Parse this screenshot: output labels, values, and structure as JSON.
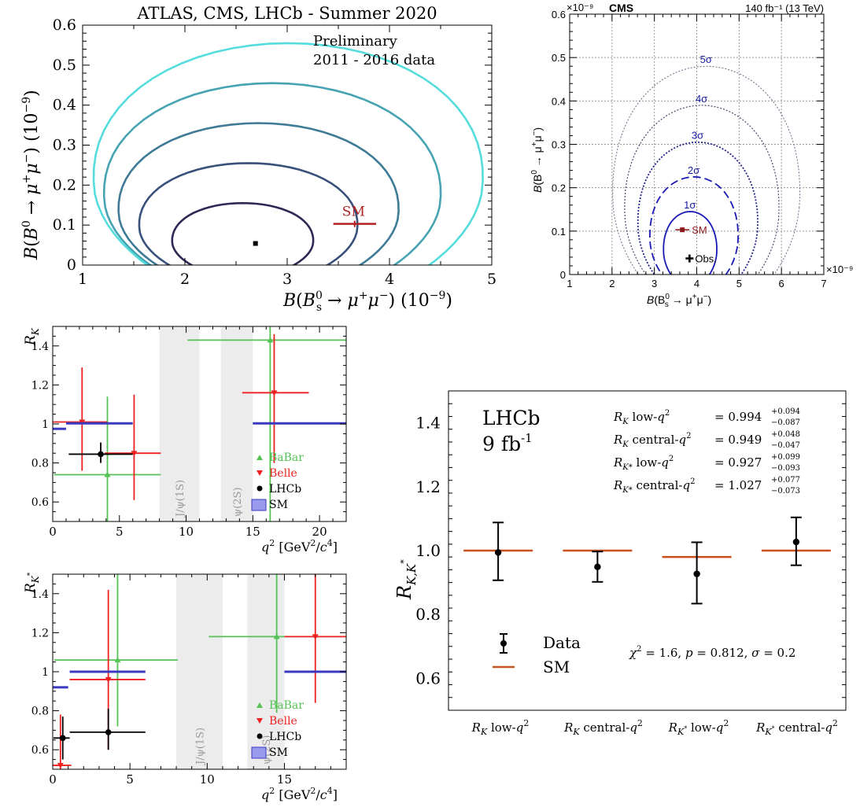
{
  "chart_data": [
    {
      "type": "contour",
      "title": "ATLAS, CMS, LHCb - Summer 2020",
      "annotations": [
        "Preliminary",
        "2011 - 2016 data"
      ],
      "xlabel": "B(B_s^0 → μ+μ−) (10^-9)",
      "ylabel": "B(B^0 → μ+μ−) (10^-9)",
      "xlim": [
        1,
        5
      ],
      "ylim": [
        0,
        0.6
      ],
      "xticks": [
        "1",
        "2",
        "3",
        "4",
        "5"
      ],
      "yticks": [
        "0",
        "0.1",
        "0.2",
        "0.3",
        "0.4",
        "0.5",
        "0.6"
      ],
      "best_fit": {
        "x": 2.69,
        "y": 0.054
      },
      "sm": {
        "label": "SM",
        "x": 3.66,
        "y": 0.103,
        "xerr": 0.14
      },
      "contours": [
        {
          "x_right": 3.25,
          "y_top": 0.155,
          "x_left": 1.88,
          "color": "#2c2a55"
        },
        {
          "x_right": 3.68,
          "y_top": 0.255,
          "x_left": 1.56,
          "color": "#38507a"
        },
        {
          "x_right": 4.08,
          "y_top": 0.355,
          "x_left": 1.36,
          "color": "#3f7a96"
        },
        {
          "x_right": 4.49,
          "y_top": 0.455,
          "x_left": 1.22,
          "color": "#46a4b2"
        },
        {
          "x_right": 4.9,
          "y_top": 0.555,
          "x_left": 1.12,
          "color": "#55dcdc"
        }
      ]
    },
    {
      "type": "contour",
      "title": "CMS",
      "lumi": "140 fb⁻¹ (13 TeV)",
      "x_exponent": "×10⁻⁹",
      "y_exponent": "×10⁻⁹",
      "xlabel": "B(B_s^0 → μ+μ−)",
      "ylabel": "B(B^0 → μ+μ−)",
      "xlim": [
        1,
        7
      ],
      "ylim": [
        0,
        0.6
      ],
      "xticks": [
        "1",
        "2",
        "3",
        "4",
        "5",
        "6",
        "7"
      ],
      "yticks": [
        "0",
        "0.1",
        "0.2",
        "0.3",
        "0.4",
        "0.5",
        "0.6"
      ],
      "obs": {
        "label": "Obs.",
        "x": 3.83,
        "y": 0.037
      },
      "sm": {
        "label": "SM",
        "x": 3.66,
        "y": 0.103
      },
      "contours": [
        {
          "label": "1σ",
          "x_left": 3.22,
          "x_right": 4.47,
          "y_top": 0.145
        },
        {
          "label": "2σ",
          "x_left": 2.9,
          "x_right": 4.97,
          "y_top": 0.225
        },
        {
          "label": "3σ",
          "x_left": 2.62,
          "x_right": 5.43,
          "y_top": 0.305
        },
        {
          "label": "4σ",
          "x_left": 2.31,
          "x_right": 5.93,
          "y_top": 0.39
        },
        {
          "label": "5σ",
          "x_left": 2.03,
          "x_right": 6.42,
          "y_top": 0.48
        }
      ]
    },
    {
      "type": "errorbar",
      "ylabel": "R_K",
      "xlabel": "q² [GeV²/c⁴]",
      "xlim": [
        0,
        22
      ],
      "ylim": [
        0.5,
        1.5
      ],
      "xticks": [
        "0",
        "5",
        "10",
        "15",
        "20"
      ],
      "yticks": [
        "0.6",
        "0.8",
        "1",
        "1.2",
        "1.4"
      ],
      "bands": [
        {
          "label": "J/ψ(1S)",
          "x": [
            8,
            11
          ]
        },
        {
          "label": "ψ(2S)",
          "x": [
            12.6,
            15
          ]
        }
      ],
      "legend": [
        "BaBar",
        "Belle",
        "LHCb",
        "SM"
      ],
      "series": [
        {
          "name": "BaBar",
          "color": "#55c255",
          "marker": "triangle-up",
          "points": [
            {
              "x": 4.1,
              "xlo": 0.1,
              "xhi": 8.1,
              "y": 0.74,
              "ylo": 0.5,
              "yhi": 1.14
            },
            {
              "x": 16.3,
              "xlo": 10.1,
              "xhi": 22,
              "y": 1.43,
              "ylo": 0.5,
              "yhi": 1.5
            }
          ]
        },
        {
          "name": "Belle",
          "color": "#ee2020",
          "marker": "triangle-down",
          "points": [
            {
              "x": 2.2,
              "xlo": 0,
              "xhi": 4.1,
              "y": 1.01,
              "ylo": 0.76,
              "yhi": 1.29
            },
            {
              "x": 6.1,
              "xlo": 3.9,
              "xhi": 8.1,
              "y": 0.85,
              "ylo": 0.61,
              "yhi": 1.15
            },
            {
              "x": 16.6,
              "xlo": 14.2,
              "xhi": 19.2,
              "y": 1.16,
              "ylo": 0.8,
              "yhi": 1.46
            }
          ]
        },
        {
          "name": "LHCb",
          "color": "#000000",
          "marker": "circle",
          "points": [
            {
              "x": 3.6,
              "xlo": 1.2,
              "xhi": 6.0,
              "y": 0.845,
              "ylo": 0.8,
              "yhi": 0.905
            }
          ]
        },
        {
          "name": "SM",
          "color": "#3a3ac0",
          "marker": "band",
          "points": [
            {
              "xlo": 0,
              "xhi": 1,
              "y": 0.975
            },
            {
              "xlo": 1,
              "xhi": 6,
              "y": 1.003
            },
            {
              "xlo": 15,
              "xhi": 22,
              "y": 1.003
            }
          ]
        }
      ]
    },
    {
      "type": "errorbar",
      "ylabel": "R_K*",
      "xlabel": "q² [GeV²/c⁴]",
      "xlim": [
        0,
        19
      ],
      "ylim": [
        0.5,
        1.5
      ],
      "xticks": [
        "0",
        "5",
        "10",
        "15"
      ],
      "yticks": [
        "0.6",
        "0.8",
        "1",
        "1.2",
        "1.4"
      ],
      "bands": [
        {
          "label": "J/ψ(1S)",
          "x": [
            8,
            11
          ]
        },
        {
          "label": "ψ(2S)",
          "x": [
            12.6,
            15
          ]
        }
      ],
      "legend": [
        "BaBar",
        "Belle",
        "LHCb",
        "SM"
      ],
      "series": [
        {
          "name": "BaBar",
          "color": "#55c255",
          "marker": "triangle-up",
          "points": [
            {
              "x": 4.2,
              "xlo": 0.1,
              "xhi": 8.1,
              "y": 1.06,
              "ylo": 0.72,
              "yhi": 1.5
            },
            {
              "x": 14.5,
              "xlo": 10.1,
              "xhi": 19,
              "y": 1.18,
              "ylo": 0.79,
              "yhi": 1.5
            }
          ]
        },
        {
          "name": "Belle",
          "color": "#ee2020",
          "marker": "triangle-down",
          "points": [
            {
              "x": 0.5,
              "xlo": 0,
              "xhi": 1.2,
              "y": 0.52,
              "ylo": 0.5,
              "yhi": 0.78
            },
            {
              "x": 3.6,
              "xlo": 1.1,
              "xhi": 6.0,
              "y": 0.96,
              "ylo": 0.6,
              "yhi": 1.42
            },
            {
              "x": 17,
              "xlo": 15,
              "xhi": 19,
              "y": 1.18,
              "ylo": 0.84,
              "yhi": 1.5
            }
          ]
        },
        {
          "name": "LHCb",
          "color": "#000000",
          "marker": "circle",
          "points": [
            {
              "x": 0.65,
              "xlo": 0.05,
              "xhi": 1.1,
              "y": 0.66,
              "ylo": 0.55,
              "yhi": 0.77
            },
            {
              "x": 3.6,
              "xlo": 1.1,
              "xhi": 6.0,
              "y": 0.69,
              "ylo": 0.6,
              "yhi": 0.81
            }
          ]
        },
        {
          "name": "SM",
          "color": "#3a3ac0",
          "marker": "band",
          "points": [
            {
              "xlo": 0,
              "xhi": 1.0,
              "y": 0.92
            },
            {
              "xlo": 1.1,
              "xhi": 6.0,
              "y": 1.0
            },
            {
              "xlo": 15,
              "xhi": 19,
              "y": 1.0
            }
          ]
        }
      ]
    },
    {
      "type": "errorbar",
      "experiment": "LHCb",
      "lumi": "9 fb⁻¹",
      "ylabel": "R_K,K*",
      "ylim": [
        0.5,
        1.5
      ],
      "yticks": [
        "0.6",
        "0.8",
        "1.0",
        "1.2",
        "1.4"
      ],
      "categories": [
        "R_K low-q²",
        "R_K central-q²",
        "R_K* low-q²",
        "R_K* central-q²"
      ],
      "results": [
        {
          "label": "R_K low-q²",
          "value": "0.994",
          "up": "+0.094",
          "down": "−0.087",
          "y": 0.994,
          "yhi": 1.088,
          "ylo": 0.907,
          "sm": 1.0
        },
        {
          "label": "R_K central-q²",
          "value": "0.949",
          "up": "+0.048",
          "down": "−0.047",
          "y": 0.949,
          "yhi": 0.997,
          "ylo": 0.902,
          "sm": 1.0
        },
        {
          "label": "R_K* low-q²",
          "value": "0.927",
          "up": "+0.099",
          "down": "−0.093",
          "y": 0.927,
          "yhi": 1.026,
          "ylo": 0.834,
          "sm": 0.98
        },
        {
          "label": "R_K* central-q²",
          "value": "1.027",
          "up": "+0.077",
          "down": "−0.073",
          "y": 1.027,
          "yhi": 1.104,
          "ylo": 0.954,
          "sm": 1.0
        }
      ],
      "legend": [
        "Data",
        "SM"
      ],
      "stat": "χ² = 1.6, p = 0.812, σ = 0.2",
      "colors": {
        "data": "#000000",
        "sm": "#c8501e"
      }
    }
  ]
}
